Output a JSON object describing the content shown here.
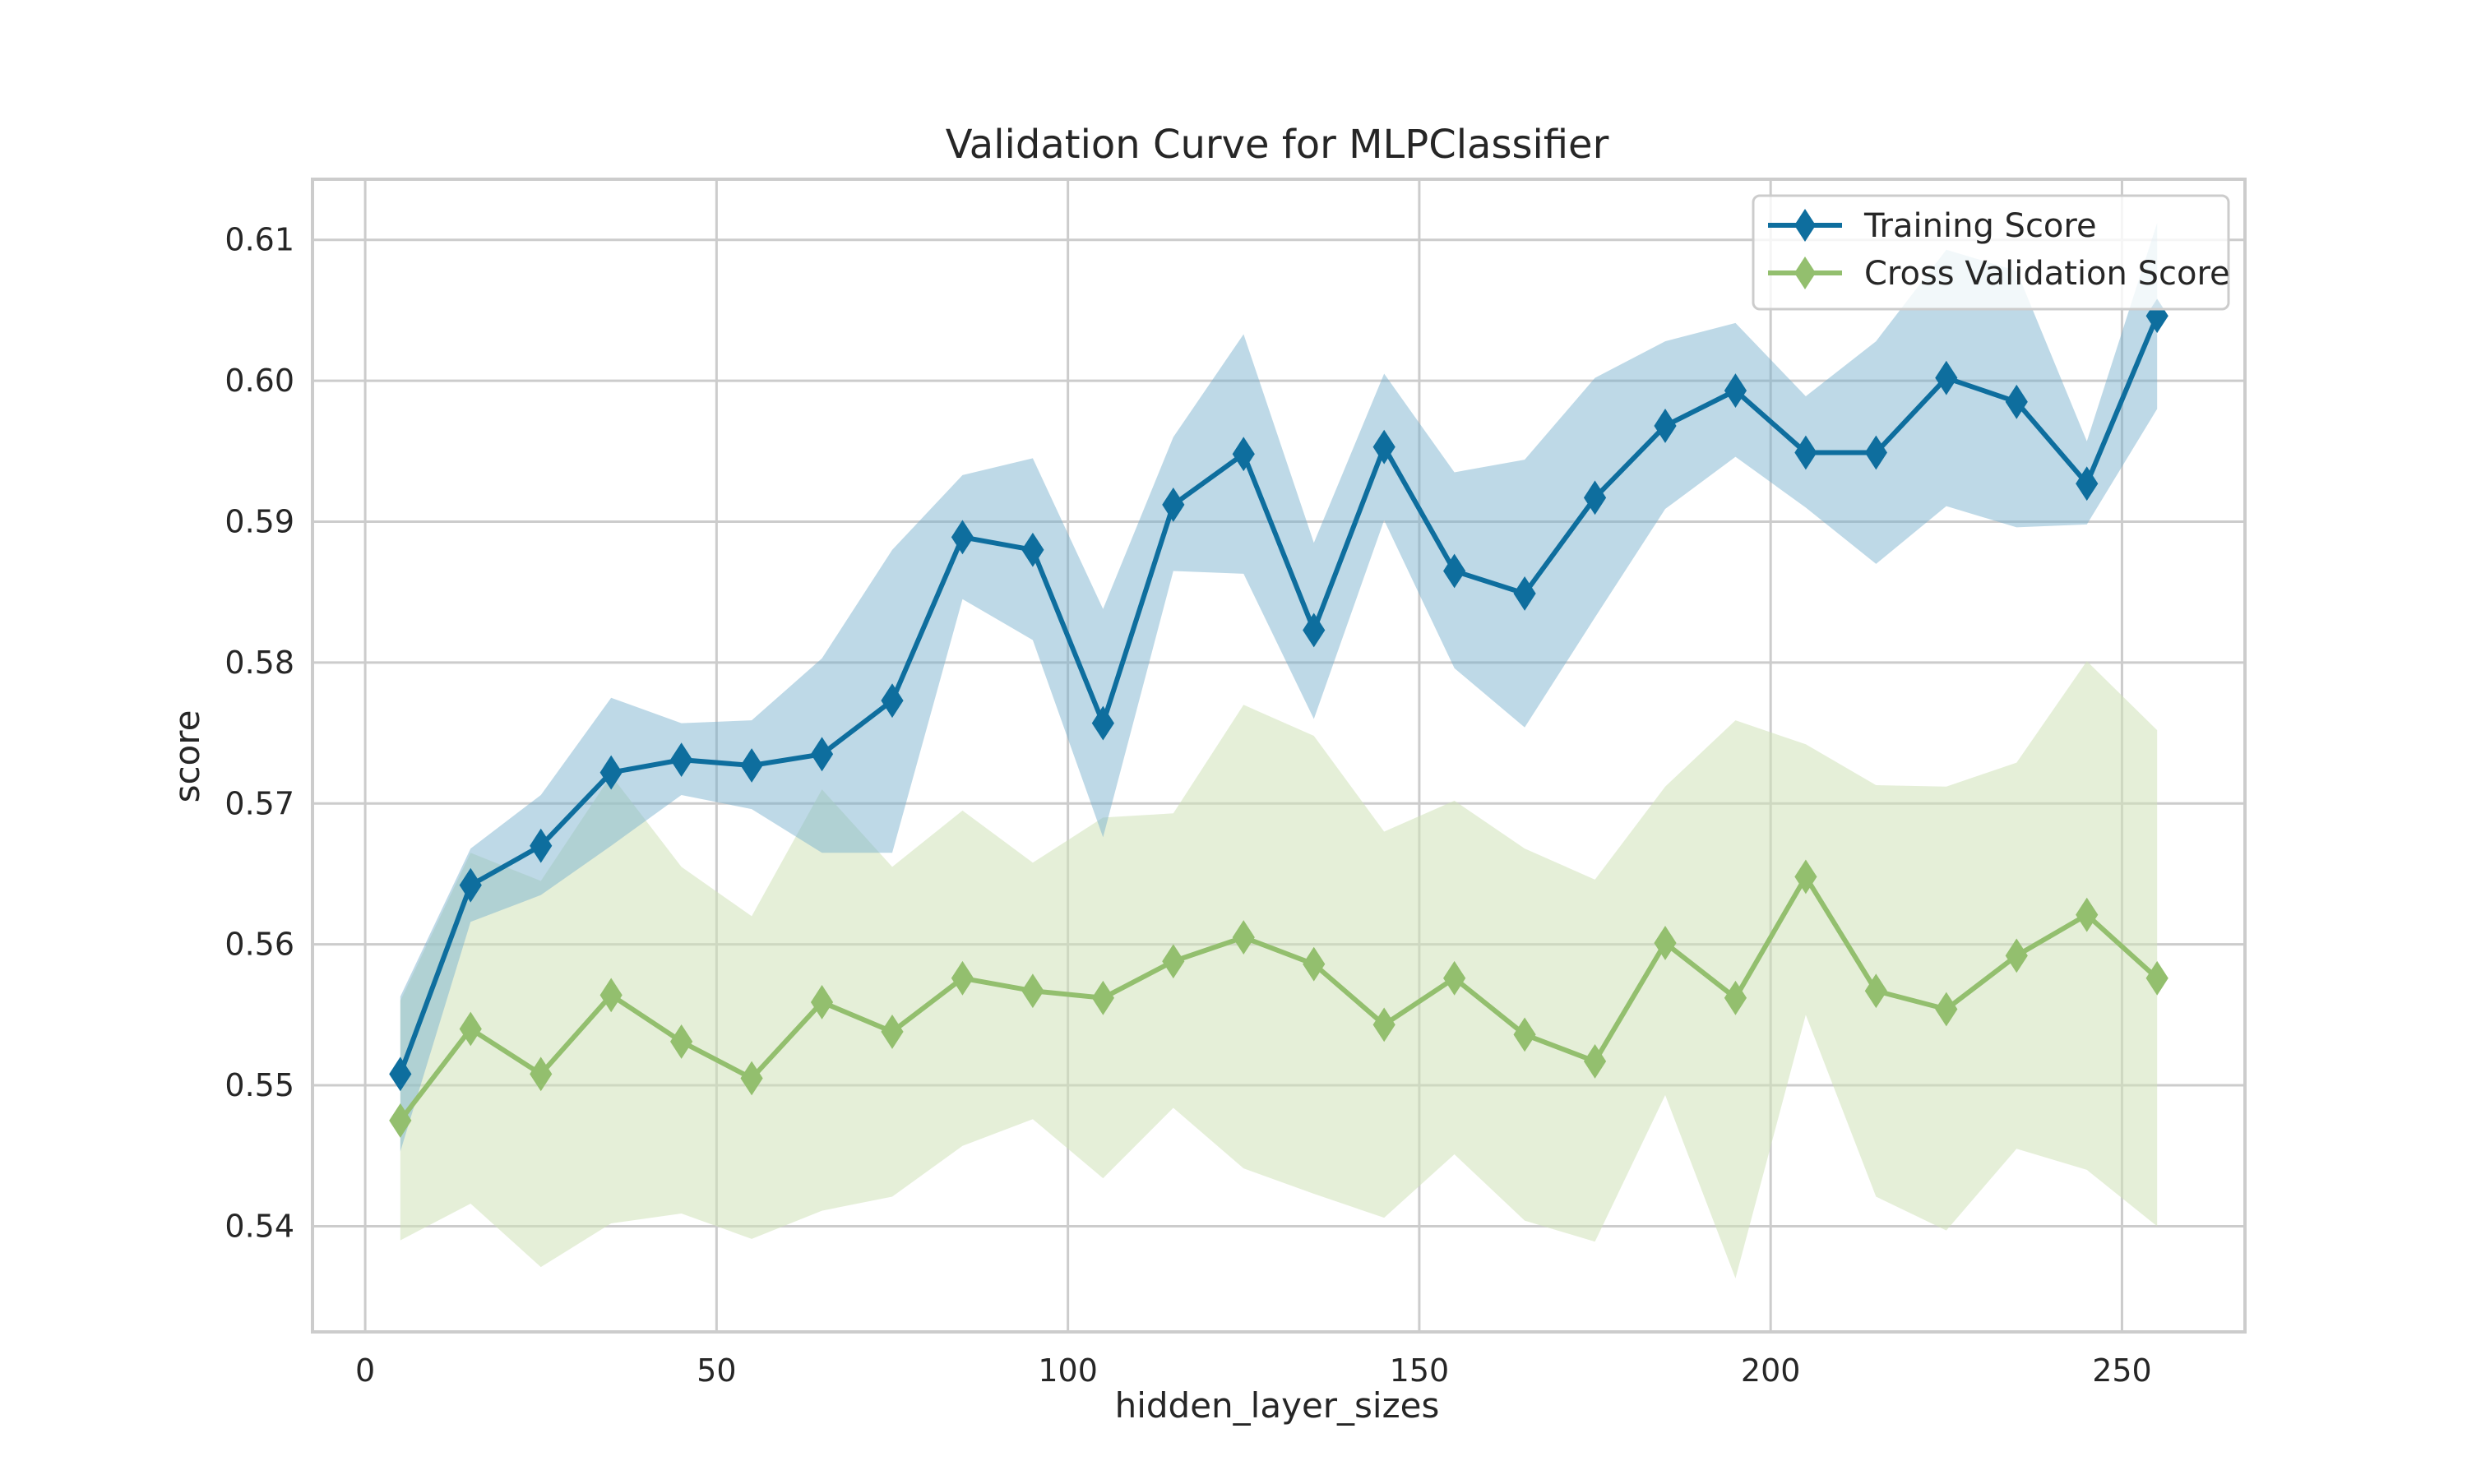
{
  "chart_data": {
    "type": "line",
    "title": "Validation Curve for MLPClassifier",
    "xlabel": "hidden_layer_sizes",
    "ylabel": "score",
    "xlim": [
      -7.5,
      267.5
    ],
    "ylim": [
      0.5325,
      0.6143
    ],
    "xticks": [
      0,
      50,
      100,
      150,
      200,
      250
    ],
    "yticks": [
      0.54,
      0.55,
      0.56,
      0.57,
      0.58,
      0.59,
      0.6,
      0.61
    ],
    "ytick_labels": [
      "0.54",
      "0.55",
      "0.56",
      "0.57",
      "0.58",
      "0.59",
      "0.60",
      "0.61"
    ],
    "grid": true,
    "legend_position": "upper right",
    "x": [
      5,
      15,
      25,
      35,
      45,
      55,
      65,
      75,
      85,
      95,
      105,
      115,
      125,
      135,
      145,
      155,
      165,
      175,
      185,
      195,
      205,
      215,
      225,
      235,
      245,
      255
    ],
    "series": [
      {
        "name": "Training Score",
        "color": "#0e6e9e",
        "band_color": "#78afcc",
        "marker": "diamond",
        "values": [
          0.5508,
          0.5642,
          0.567,
          0.5722,
          0.5731,
          0.5727,
          0.5735,
          0.5773,
          0.5889,
          0.588,
          0.5757,
          0.5912,
          0.5948,
          0.5823,
          0.5953,
          0.5865,
          0.5849,
          0.5917,
          0.5968,
          0.5993,
          0.5949,
          0.5949,
          0.6002,
          0.5985,
          0.5927,
          0.6046
        ],
        "upper": [
          0.5563,
          0.5668,
          0.5706,
          0.5775,
          0.5757,
          0.5759,
          0.5803,
          0.588,
          0.5933,
          0.5945,
          0.5838,
          0.596,
          0.6033,
          0.5885,
          0.6005,
          0.5935,
          0.5944,
          0.6002,
          0.6028,
          0.6041,
          0.5989,
          0.6028,
          0.6093,
          0.6078,
          0.5957,
          0.6112
        ],
        "lower": [
          0.5453,
          0.5616,
          0.5635,
          0.567,
          0.5706,
          0.5696,
          0.5665,
          0.5665,
          0.5845,
          0.5816,
          0.5676,
          0.5865,
          0.5863,
          0.576,
          0.5901,
          0.5796,
          0.5754,
          0.5832,
          0.5909,
          0.5946,
          0.591,
          0.587,
          0.5911,
          0.5896,
          0.5898,
          0.598
        ]
      },
      {
        "name": "Cross Validation Score",
        "color": "#93bf6e",
        "band_color": "#cfe2b8",
        "marker": "diamond",
        "values": [
          0.5475,
          0.554,
          0.5508,
          0.5564,
          0.5531,
          0.5505,
          0.5559,
          0.5538,
          0.5576,
          0.5567,
          0.5562,
          0.5588,
          0.5605,
          0.5586,
          0.5543,
          0.5576,
          0.5536,
          0.5517,
          0.5601,
          0.5562,
          0.5648,
          0.5567,
          0.5554,
          0.5592,
          0.5621,
          0.5576
        ],
        "upper": [
          0.556,
          0.5665,
          0.5645,
          0.572,
          0.5655,
          0.562,
          0.571,
          0.5655,
          0.5695,
          0.5658,
          0.569,
          0.5693,
          0.577,
          0.5748,
          0.568,
          0.5702,
          0.5668,
          0.5646,
          0.5712,
          0.5759,
          0.5742,
          0.5713,
          0.5712,
          0.5729,
          0.5801,
          0.5752
        ],
        "lower": [
          0.539,
          0.5416,
          0.5371,
          0.5402,
          0.5409,
          0.5391,
          0.5411,
          0.5421,
          0.5457,
          0.5476,
          0.5434,
          0.5484,
          0.5441,
          0.5423,
          0.5406,
          0.5451,
          0.5404,
          0.5389,
          0.5493,
          0.5363,
          0.555,
          0.5421,
          0.5397,
          0.5455,
          0.544,
          0.54
        ]
      }
    ]
  }
}
